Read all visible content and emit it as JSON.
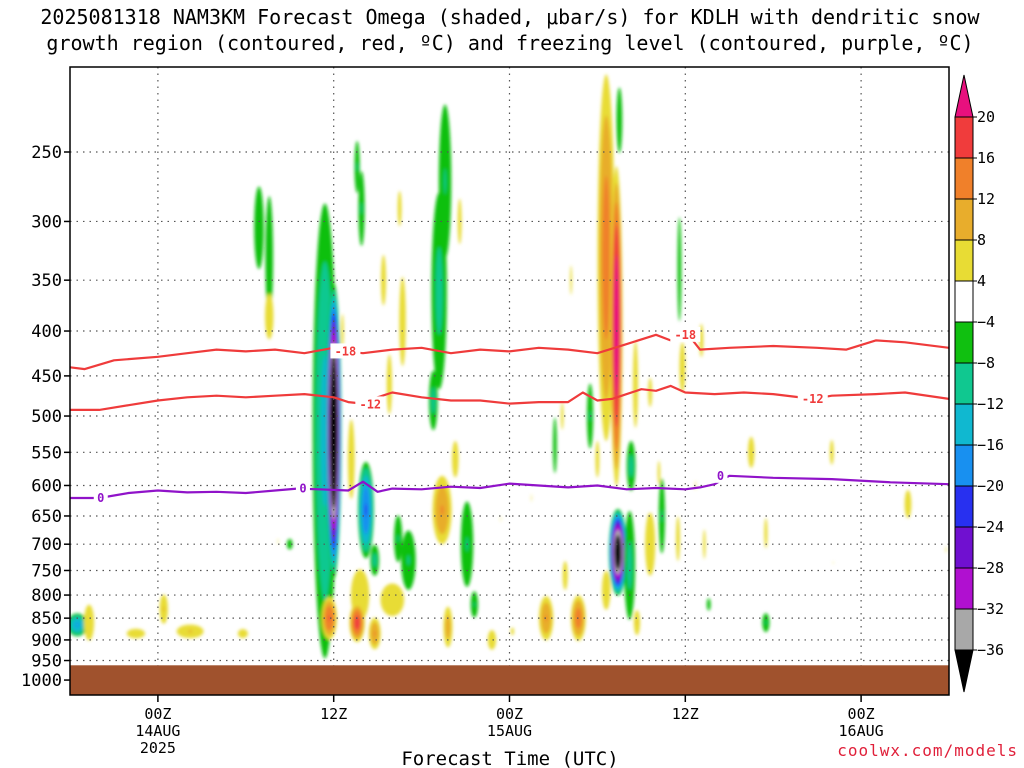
{
  "chart_data": {
    "type": "heatmap",
    "title": "2025081318 NAM3KM Forecast Omega (shaded, μbar/s) for KDLH with dendritic snow growth region (contoured, red, ºC) and freezing level (contoured, purple, ºC)",
    "title_lines": [
      "2025081318 NAM3KM Forecast Omega (shaded, μbar/s) for KDLH with dendritic snow",
      "growth region (contoured, red, ºC) and freezing level (contoured, purple, ºC)"
    ],
    "xlabel": "Forecast Time (UTC)",
    "ylabel": "",
    "credit": "coolwx.com/models",
    "x_axis": {
      "unit": "forecast hour",
      "range": [
        0,
        60
      ],
      "ticks": [
        {
          "hour": 6,
          "label": "00Z",
          "sub": [
            "14AUG",
            "2025"
          ]
        },
        {
          "hour": 18,
          "label": "12Z",
          "sub": []
        },
        {
          "hour": 30,
          "label": "00Z",
          "sub": [
            "15AUG"
          ]
        },
        {
          "hour": 42,
          "label": "12Z",
          "sub": []
        },
        {
          "hour": 54,
          "label": "00Z",
          "sub": [
            "16AUG"
          ]
        }
      ]
    },
    "y_axis": {
      "unit": "hPa",
      "scale": "log",
      "range": [
        200,
        1040
      ],
      "ticks": [
        250,
        300,
        350,
        400,
        450,
        500,
        550,
        600,
        650,
        700,
        750,
        800,
        850,
        900,
        950,
        1000
      ],
      "grid": true
    },
    "colorbar": {
      "ticks": [
        "20",
        "16",
        "12",
        "8",
        "4",
        "−4",
        "−8",
        "−12",
        "−16",
        "−20",
        "−24",
        "−28",
        "−32",
        "−36"
      ],
      "bins": [
        {
          "min": 20,
          "max": null,
          "color": "#e8107e"
        },
        {
          "min": 16,
          "max": 20,
          "color": "#f03c3c"
        },
        {
          "min": 12,
          "max": 16,
          "color": "#f0802a"
        },
        {
          "min": 8,
          "max": 12,
          "color": "#e8ad2c"
        },
        {
          "min": 4,
          "max": 8,
          "color": "#e8dc34"
        },
        {
          "min": -4,
          "max": 4,
          "color": "#ffffff"
        },
        {
          "min": -8,
          "max": -4,
          "color": "#10c010"
        },
        {
          "min": -12,
          "max": -8,
          "color": "#10c890"
        },
        {
          "min": -16,
          "max": -12,
          "color": "#10b8d0"
        },
        {
          "min": -20,
          "max": -16,
          "color": "#1890f0"
        },
        {
          "min": -24,
          "max": -20,
          "color": "#2830f0"
        },
        {
          "min": -28,
          "max": -24,
          "color": "#7010d0"
        },
        {
          "min": -32,
          "max": -28,
          "color": "#b010d0"
        },
        {
          "min": -36,
          "max": -32,
          "color": "#a8a8a8"
        },
        {
          "min": null,
          "max": -36,
          "color": "#000000"
        }
      ]
    },
    "omega_cells": [
      {
        "t": 0.5,
        "p": 865,
        "dt": 0.8,
        "dp": 30,
        "peak": -16
      },
      {
        "t": 1.3,
        "p": 860,
        "dt": 0.6,
        "dp": 70,
        "peak": 6
      },
      {
        "t": 6.4,
        "p": 830,
        "dt": 0.4,
        "dp": 45,
        "peak": 8
      },
      {
        "t": 4.5,
        "p": 885,
        "dt": 1.4,
        "dp": 25,
        "peak": 5
      },
      {
        "t": 8.2,
        "p": 880,
        "dt": 1.3,
        "dp": 22,
        "peak": 8
      },
      {
        "t": 11.8,
        "p": 885,
        "dt": 0.6,
        "dp": 18,
        "peak": 6
      },
      {
        "t": 14.2,
        "p": 695,
        "dt": 0.2,
        "dp": 40,
        "peak": 4
      },
      {
        "t": 15.0,
        "p": 700,
        "dt": 0.3,
        "dp": 15,
        "peak": -7
      },
      {
        "t": 12.9,
        "p": 305,
        "dt": 0.5,
        "dp": 50,
        "peak": -7
      },
      {
        "t": 13.6,
        "p": 330,
        "dt": 0.4,
        "dp": 80,
        "peak": -7
      },
      {
        "t": 13.6,
        "p": 385,
        "dt": 0.5,
        "dp": 40,
        "peak": 6
      },
      {
        "t": 17.4,
        "p": 520,
        "dt": 1.0,
        "dp": 320,
        "peak": -13
      },
      {
        "t": 18.0,
        "p": 520,
        "dt": 0.55,
        "dp": 200,
        "peak": -48
      },
      {
        "t": 18.6,
        "p": 400,
        "dt": 0.2,
        "dp": 40,
        "peak": 5
      },
      {
        "t": 17.7,
        "p": 850,
        "dt": 0.6,
        "dp": 55,
        "peak": 16
      },
      {
        "t": 19.2,
        "p": 560,
        "dt": 0.4,
        "dp": 100,
        "peak": 6
      },
      {
        "t": 19.8,
        "p": 800,
        "dt": 1.4,
        "dp": 120,
        "peak": 5
      },
      {
        "t": 19.6,
        "p": 860,
        "dt": 0.6,
        "dp": 50,
        "peak": 18
      },
      {
        "t": 20.2,
        "p": 640,
        "dt": 0.6,
        "dp": 90,
        "peak": -20
      },
      {
        "t": 20.8,
        "p": 730,
        "dt": 0.4,
        "dp": 40,
        "peak": -9
      },
      {
        "t": 20.8,
        "p": 885,
        "dt": 0.5,
        "dp": 45,
        "peak": 12
      },
      {
        "t": 19.9,
        "p": 290,
        "dt": 0.3,
        "dp": 40,
        "peak": -8
      },
      {
        "t": 19.6,
        "p": 260,
        "dt": 0.25,
        "dp": 25,
        "peak": -8
      },
      {
        "t": 21.4,
        "p": 350,
        "dt": 0.3,
        "dp": 40,
        "peak": 6
      },
      {
        "t": 22.0,
        "p": 810,
        "dt": 1.4,
        "dp": 60,
        "peak": 6
      },
      {
        "t": 22.4,
        "p": 690,
        "dt": 0.4,
        "dp": 60,
        "peak": -8
      },
      {
        "t": 23.1,
        "p": 730,
        "dt": 0.7,
        "dp": 80,
        "peak": -8
      },
      {
        "t": 22.7,
        "p": 390,
        "dt": 0.5,
        "dp": 100,
        "peak": 5
      },
      {
        "t": 21.8,
        "p": 460,
        "dt": 0.4,
        "dp": 80,
        "peak": 5
      },
      {
        "t": 22.5,
        "p": 290,
        "dt": 0.3,
        "dp": 30,
        "peak": 5
      },
      {
        "t": 26.3,
        "p": 560,
        "dt": 0.5,
        "dp": 60,
        "peak": 5
      },
      {
        "t": 25.4,
        "p": 640,
        "dt": 0.8,
        "dp": 70,
        "peak": 12
      },
      {
        "t": 25.8,
        "p": 870,
        "dt": 0.4,
        "dp": 60,
        "peak": 10
      },
      {
        "t": 25.6,
        "p": 270,
        "dt": 0.6,
        "dp": 75,
        "peak": -8
      },
      {
        "t": 25.2,
        "p": 360,
        "dt": 0.7,
        "dp": 120,
        "peak": -9
      },
      {
        "t": 24.8,
        "p": 480,
        "dt": 0.4,
        "dp": 50,
        "peak": -9
      },
      {
        "t": 26.6,
        "p": 300,
        "dt": 0.3,
        "dp": 40,
        "peak": 5
      },
      {
        "t": 27.1,
        "p": 700,
        "dt": 0.6,
        "dp": 110,
        "peak": -8
      },
      {
        "t": 27.6,
        "p": 820,
        "dt": 0.35,
        "dp": 40,
        "peak": -8
      },
      {
        "t": 28.8,
        "p": 900,
        "dt": 0.5,
        "dp": 40,
        "peak": 6
      },
      {
        "t": 29.4,
        "p": 655,
        "dt": 0.15,
        "dp": 40,
        "peak": 4
      },
      {
        "t": 30.2,
        "p": 880,
        "dt": 0.25,
        "dp": 20,
        "peak": 5
      },
      {
        "t": 31.5,
        "p": 620,
        "dt": 0.2,
        "dp": 50,
        "peak": 4
      },
      {
        "t": 32.5,
        "p": 850,
        "dt": 0.6,
        "dp": 60,
        "peak": 12
      },
      {
        "t": 33.1,
        "p": 540,
        "dt": 0.2,
        "dp": 60,
        "peak": -7
      },
      {
        "t": 33.6,
        "p": 500,
        "dt": 0.2,
        "dp": 40,
        "peak": 5
      },
      {
        "t": 34.2,
        "p": 350,
        "dt": 0.15,
        "dp": 30,
        "peak": 5
      },
      {
        "t": 33.8,
        "p": 760,
        "dt": 0.3,
        "dp": 50,
        "peak": 6
      },
      {
        "t": 34.7,
        "p": 850,
        "dt": 0.6,
        "dp": 60,
        "peak": 14
      },
      {
        "t": 35.5,
        "p": 500,
        "dt": 0.3,
        "dp": 60,
        "peak": -8
      },
      {
        "t": 36.0,
        "p": 560,
        "dt": 0.3,
        "dp": 60,
        "peak": 5
      },
      {
        "t": 36.6,
        "p": 330,
        "dt": 0.7,
        "dp": 170,
        "peak": 14
      },
      {
        "t": 37.3,
        "p": 395,
        "dt": 0.45,
        "dp": 170,
        "peak": 24
      },
      {
        "t": 37.4,
        "p": 715,
        "dt": 0.65,
        "dp": 85,
        "peak": -42
      },
      {
        "t": 36.6,
        "p": 790,
        "dt": 0.5,
        "dp": 70,
        "peak": 6
      },
      {
        "t": 38.2,
        "p": 740,
        "dt": 0.5,
        "dp": 140,
        "peak": -9
      },
      {
        "t": 38.7,
        "p": 860,
        "dt": 0.3,
        "dp": 40,
        "peak": 8
      },
      {
        "t": 38.3,
        "p": 570,
        "dt": 0.4,
        "dp": 50,
        "peak": -9
      },
      {
        "t": 38.6,
        "p": 460,
        "dt": 0.3,
        "dp": 90,
        "peak": 6
      },
      {
        "t": 37.5,
        "p": 230,
        "dt": 0.3,
        "dp": 30,
        "peak": -7
      },
      {
        "t": 39.6,
        "p": 700,
        "dt": 0.6,
        "dp": 100,
        "peak": 6
      },
      {
        "t": 39.6,
        "p": 470,
        "dt": 0.3,
        "dp": 40,
        "peak": 5
      },
      {
        "t": 40.4,
        "p": 650,
        "dt": 0.3,
        "dp": 90,
        "peak": -8
      },
      {
        "t": 40.2,
        "p": 580,
        "dt": 0.2,
        "dp": 40,
        "peak": 5
      },
      {
        "t": 41.5,
        "p": 690,
        "dt": 0.3,
        "dp": 90,
        "peak": 5
      },
      {
        "t": 41.6,
        "p": 340,
        "dt": 0.2,
        "dp": 70,
        "peak": -7
      },
      {
        "t": 41.8,
        "p": 440,
        "dt": 0.35,
        "dp": 50,
        "peak": 6
      },
      {
        "t": 42.7,
        "p": 600,
        "dt": 0.25,
        "dp": 60,
        "peak": 4
      },
      {
        "t": 43.3,
        "p": 700,
        "dt": 0.2,
        "dp": 60,
        "peak": 5
      },
      {
        "t": 43.1,
        "p": 410,
        "dt": 0.3,
        "dp": 40,
        "peak": 5
      },
      {
        "t": 43.6,
        "p": 820,
        "dt": 0.2,
        "dp": 20,
        "peak": -7
      },
      {
        "t": 46.5,
        "p": 550,
        "dt": 0.5,
        "dp": 50,
        "peak": 5
      },
      {
        "t": 47.5,
        "p": 680,
        "dt": 0.25,
        "dp": 60,
        "peak": 5
      },
      {
        "t": 47.5,
        "p": 860,
        "dt": 0.35,
        "dp": 30,
        "peak": -8
      },
      {
        "t": 52.0,
        "p": 550,
        "dt": 0.3,
        "dp": 40,
        "peak": 5
      },
      {
        "t": 52.1,
        "p": 735,
        "dt": 0.15,
        "dp": 20,
        "peak": 4
      },
      {
        "t": 57.2,
        "p": 630,
        "dt": 0.4,
        "dp": 40,
        "peak": 6
      },
      {
        "t": 59.8,
        "p": 710,
        "dt": 0.3,
        "dp": 40,
        "peak": 4
      }
    ],
    "contours": [
      {
        "label": "-18",
        "color": "#ef3b3b",
        "label_positions": [
          {
            "t": 18.8,
            "p": 422
          },
          {
            "t": 42.0,
            "p": 404
          }
        ],
        "points": [
          [
            0,
            440
          ],
          [
            1,
            442
          ],
          [
            3,
            432
          ],
          [
            6,
            428
          ],
          [
            8,
            424
          ],
          [
            10,
            420
          ],
          [
            12,
            422
          ],
          [
            14,
            420
          ],
          [
            16,
            424
          ],
          [
            18,
            418
          ],
          [
            18.8,
            422
          ],
          [
            20,
            424
          ],
          [
            22,
            420
          ],
          [
            24,
            418
          ],
          [
            26,
            424
          ],
          [
            28,
            420
          ],
          [
            30,
            422
          ],
          [
            32,
            418
          ],
          [
            34,
            420
          ],
          [
            36,
            424
          ],
          [
            38,
            414
          ],
          [
            40,
            404
          ],
          [
            41,
            410
          ],
          [
            42,
            400
          ],
          [
            43,
            420
          ],
          [
            45,
            418
          ],
          [
            48,
            416
          ],
          [
            51,
            418
          ],
          [
            53,
            420
          ],
          [
            55,
            410
          ],
          [
            57,
            412
          ],
          [
            60,
            418
          ]
        ]
      },
      {
        "label": "-12",
        "color": "#ef3b3b",
        "label_positions": [
          {
            "t": 20.5,
            "p": 485
          },
          {
            "t": 50.7,
            "p": 478
          }
        ],
        "points": [
          [
            0,
            492
          ],
          [
            2,
            492
          ],
          [
            4,
            486
          ],
          [
            6,
            480
          ],
          [
            8,
            476
          ],
          [
            10,
            474
          ],
          [
            12,
            476
          ],
          [
            14,
            474
          ],
          [
            16,
            472
          ],
          [
            18,
            476
          ],
          [
            19,
            482
          ],
          [
            20,
            484
          ],
          [
            21,
            476
          ],
          [
            22,
            470
          ],
          [
            24,
            476
          ],
          [
            26,
            480
          ],
          [
            28,
            480
          ],
          [
            30,
            484
          ],
          [
            32,
            482
          ],
          [
            34,
            482
          ],
          [
            35,
            470
          ],
          [
            36,
            480
          ],
          [
            37,
            478
          ],
          [
            38,
            472
          ],
          [
            39,
            466
          ],
          [
            40,
            468
          ],
          [
            41,
            462
          ],
          [
            42,
            470
          ],
          [
            44,
            472
          ],
          [
            46,
            470
          ],
          [
            48,
            472
          ],
          [
            50.7,
            478
          ],
          [
            52,
            474
          ],
          [
            55,
            472
          ],
          [
            57,
            470
          ],
          [
            60,
            478
          ]
        ]
      },
      {
        "label": "0",
        "color": "#9013c9",
        "label_positions": [
          {
            "t": 2.1,
            "p": 620
          },
          {
            "t": 15.9,
            "p": 605
          },
          {
            "t": 44.4,
            "p": 585
          }
        ],
        "points": [
          [
            0,
            620
          ],
          [
            2,
            620
          ],
          [
            4,
            612
          ],
          [
            6,
            608
          ],
          [
            8,
            611
          ],
          [
            10,
            610
          ],
          [
            12,
            612
          ],
          [
            14,
            608
          ],
          [
            15.5,
            605
          ],
          [
            17,
            606
          ],
          [
            19,
            608
          ],
          [
            20,
            594
          ],
          [
            21,
            610
          ],
          [
            22,
            605
          ],
          [
            24,
            606
          ],
          [
            26,
            602
          ],
          [
            28,
            604
          ],
          [
            30,
            597
          ],
          [
            32,
            600
          ],
          [
            34,
            603
          ],
          [
            36,
            600
          ],
          [
            38,
            606
          ],
          [
            40,
            604
          ],
          [
            42,
            606
          ],
          [
            43,
            603
          ],
          [
            44,
            598
          ],
          [
            45,
            585
          ],
          [
            48,
            588
          ],
          [
            52,
            590
          ],
          [
            56,
            595
          ],
          [
            60,
            598
          ]
        ]
      }
    ],
    "ground": {
      "color": "#a0522d",
      "top_hPa": 962
    },
    "legend": "right colorbar",
    "grid": true
  }
}
